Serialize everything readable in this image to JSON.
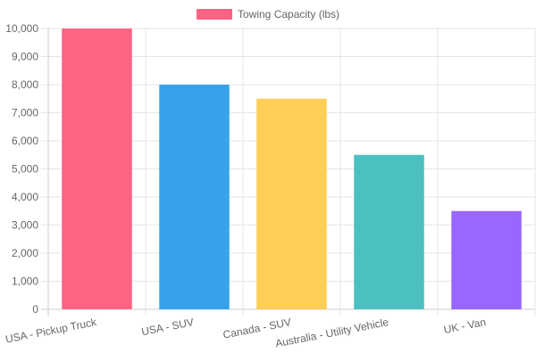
{
  "chart_data": {
    "type": "bar",
    "title": "",
    "xlabel": "",
    "ylabel": "",
    "categories": [
      "USA - Pickup Truck",
      "USA - SUV",
      "Canada - SUV",
      "Australia - Utility Vehicle",
      "UK - Van"
    ],
    "series": [
      {
        "name": "Towing Capacity (lbs)",
        "values": [
          10000,
          8000,
          7500,
          5500,
          3500
        ],
        "colors": [
          "#ff6384",
          "#36a2eb",
          "#ffce56",
          "#4bc0c0",
          "#9966ff"
        ],
        "legend_color": "#ff6384"
      }
    ],
    "ylim": [
      0,
      10000
    ],
    "yticks": [
      0,
      1000,
      2000,
      3000,
      4000,
      5000,
      6000,
      7000,
      8000,
      9000,
      10000
    ],
    "ytick_labels": [
      "0",
      "1,000",
      "2,000",
      "3,000",
      "4,000",
      "5,000",
      "6,000",
      "7,000",
      "8,000",
      "9,000",
      "10,000"
    ],
    "grid": true,
    "legend_position": "top"
  }
}
